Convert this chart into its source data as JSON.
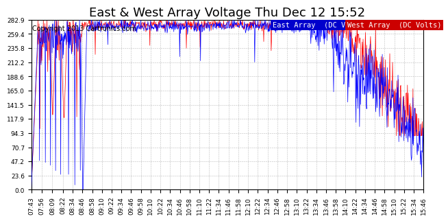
{
  "title": "East & West Array Voltage Thu Dec 12 15:52",
  "copyright": "Copyright 2013 Cartronics.com",
  "legend_east": "East Array  (DC Volts)",
  "legend_west": "West Array  (DC Volts)",
  "east_color": "#0000ff",
  "west_color": "#ff0000",
  "legend_east_bg": "#0000cc",
  "legend_west_bg": "#cc0000",
  "background_color": "#ffffff",
  "plot_bg_color": "#ffffff",
  "grid_color": "#aaaaaa",
  "ylim": [
    0.0,
    282.9
  ],
  "yticks": [
    0.0,
    23.6,
    47.2,
    70.7,
    94.3,
    117.9,
    141.5,
    165.0,
    188.6,
    212.2,
    235.8,
    259.4,
    282.9
  ],
  "title_fontsize": 13,
  "tick_fontsize": 6.5,
  "copyright_fontsize": 7,
  "legend_fontsize": 7.5,
  "xtick_labels": [
    "07:43",
    "07:56",
    "08:09",
    "08:22",
    "08:34",
    "08:46",
    "08:58",
    "09:10",
    "09:22",
    "09:34",
    "09:46",
    "09:58",
    "10:10",
    "10:22",
    "10:34",
    "10:46",
    "10:58",
    "11:10",
    "11:22",
    "11:34",
    "11:46",
    "11:58",
    "12:10",
    "12:22",
    "12:34",
    "12:46",
    "12:58",
    "13:10",
    "13:22",
    "13:34",
    "13:46",
    "13:58",
    "14:10",
    "14:22",
    "14:34",
    "14:46",
    "14:58",
    "15:10",
    "15:22",
    "15:34",
    "15:46"
  ]
}
